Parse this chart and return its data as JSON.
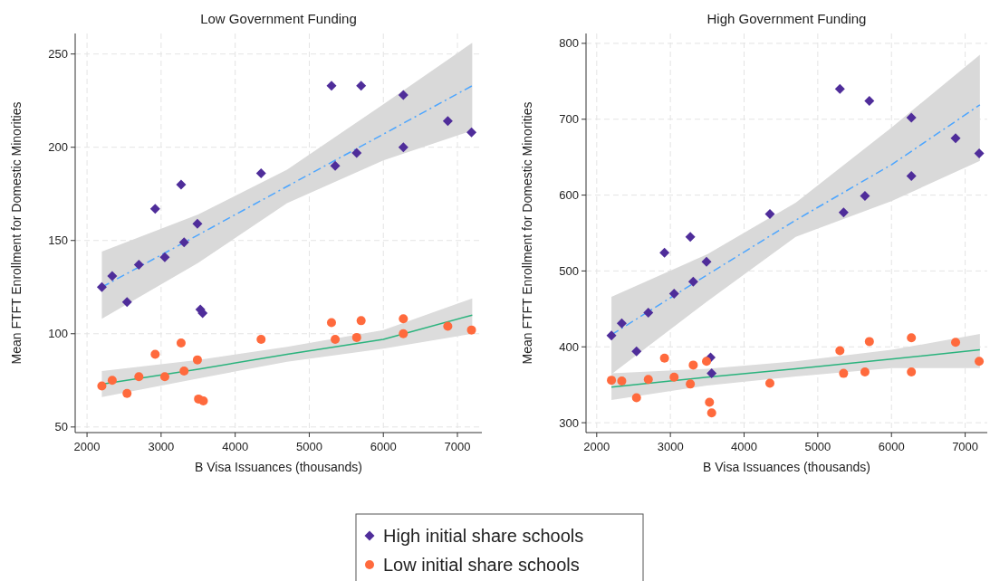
{
  "chart_data": [
    {
      "type": "scatter",
      "title": "Low Government Funding",
      "xlabel": "B Visa Issuances (thousands)",
      "ylabel": "Mean FTFT Enrollment for Domestic Minorities",
      "xlim": [
        1840,
        7330
      ],
      "ylim": [
        47,
        261
      ],
      "xticks": [
        2000,
        3000,
        4000,
        5000,
        6000,
        7000
      ],
      "yticks": [
        50,
        100,
        150,
        200,
        250
      ],
      "grid": true,
      "legend": "bottom",
      "series": [
        {
          "type": "line",
          "color": "#4da6ff",
          "line_style": "dashed",
          "marker": "none",
          "x": [
            2200,
            3500,
            4700,
            6000,
            7200
          ],
          "values": [
            125,
            153,
            179,
            207,
            233
          ],
          "lower": [
            108,
            138,
            170,
            193,
            209
          ],
          "upper": [
            144,
            164,
            188,
            223,
            256
          ]
        },
        {
          "type": "line",
          "color": "#2ab37d",
          "line_style": "solid",
          "marker": "none",
          "x": [
            2200,
            3500,
            4700,
            6000,
            7200
          ],
          "values": [
            73,
            81,
            89,
            97,
            110
          ],
          "lower": [
            66,
            76,
            85,
            92,
            100
          ],
          "upper": [
            80,
            86,
            93,
            102,
            119
          ]
        },
        {
          "name": "High initial share schools",
          "marker": "diamond",
          "color": "#4f2d9a",
          "x": [
            2200,
            2340,
            2540,
            2700,
            2920,
            3050,
            3270,
            3310,
            3490,
            3530,
            3560,
            4350,
            5300,
            5350,
            5640,
            5700,
            6270,
            6270,
            6870,
            7190
          ],
          "values": [
            125,
            131,
            117,
            137,
            167,
            141,
            180,
            149,
            159,
            113,
            111,
            186,
            233,
            190,
            197,
            233,
            228,
            200,
            214,
            208
          ]
        },
        {
          "name": "Low initial share schools",
          "marker": "circle",
          "color": "#ff6a3d",
          "x": [
            2200,
            2340,
            2540,
            2700,
            2920,
            3050,
            3270,
            3310,
            3490,
            3505,
            3570,
            4350,
            5300,
            5350,
            5640,
            5700,
            6270,
            6270,
            6870,
            7190
          ],
          "values": [
            72,
            75,
            68,
            77,
            89,
            77,
            95,
            80,
            86,
            65,
            64,
            97,
            106,
            97,
            98,
            107,
            108,
            100,
            104,
            102
          ]
        }
      ]
    },
    {
      "type": "scatter",
      "title": "High Government Funding",
      "xlabel": "B Visa Issuances (thousands)",
      "ylabel": "Mean FTFT Enrollment for Domestic Minorities",
      "xlim": [
        1855,
        7300
      ],
      "ylim": [
        287,
        813
      ],
      "xticks": [
        2000,
        3000,
        4000,
        5000,
        6000,
        7000
      ],
      "yticks": [
        300,
        400,
        500,
        600,
        700,
        800
      ],
      "grid": true,
      "series": [
        {
          "type": "line",
          "color": "#4da6ff",
          "line_style": "dashed",
          "marker": "none",
          "x": [
            2200,
            3500,
            4700,
            6000,
            7200
          ],
          "values": [
            416,
            495,
            567,
            640,
            719
          ],
          "lower": [
            364,
            460,
            545,
            592,
            645
          ],
          "upper": [
            466,
            522,
            590,
            689,
            785
          ]
        },
        {
          "type": "line",
          "color": "#2ab37d",
          "line_style": "solid",
          "marker": "none",
          "x": [
            2200,
            3500,
            4700,
            6000,
            7200
          ],
          "values": [
            347,
            360,
            371,
            384,
            396
          ],
          "lower": [
            330,
            349,
            361,
            372,
            372
          ],
          "upper": [
            365,
            371,
            381,
            396,
            417
          ]
        },
        {
          "marker": "diamond",
          "color": "#4f2d9a",
          "x": [
            2200,
            2340,
            2540,
            2700,
            2920,
            3050,
            3270,
            3310,
            3490,
            3545,
            3560,
            4350,
            5300,
            5350,
            5640,
            5700,
            6270,
            6270,
            6870,
            7190
          ],
          "values": [
            415,
            431,
            394,
            445,
            524,
            470,
            545,
            486,
            512,
            386,
            365,
            575,
            740,
            577,
            599,
            724,
            702,
            625,
            675,
            655
          ]
        },
        {
          "marker": "circle",
          "color": "#ff6a3d",
          "x": [
            2200,
            2340,
            2540,
            2700,
            2920,
            3050,
            3270,
            3310,
            3490,
            3530,
            3560,
            4350,
            5300,
            5350,
            5640,
            5700,
            6270,
            6270,
            6870,
            7190
          ],
          "values": [
            356,
            355,
            333,
            357,
            385,
            360,
            351,
            376,
            381,
            327,
            313,
            352,
            395,
            365,
            367,
            407,
            412,
            367,
            406,
            381
          ]
        }
      ]
    }
  ]
}
